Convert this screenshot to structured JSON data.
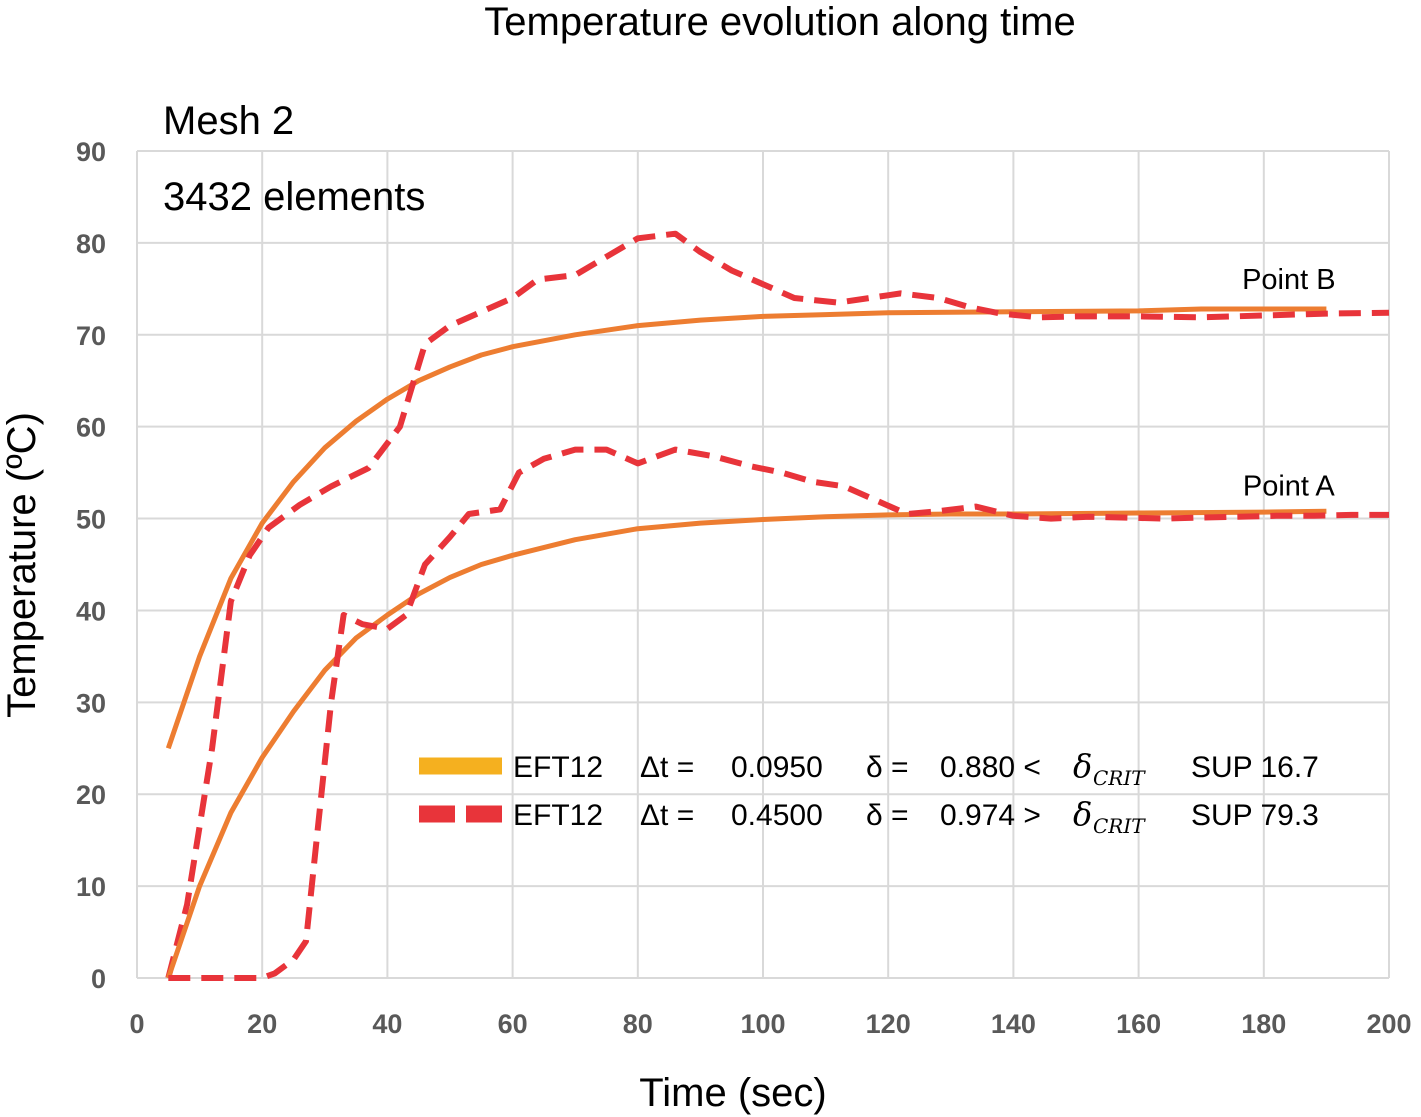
{
  "chart_data": {
    "type": "line",
    "title": "Temperature evolution along time",
    "xlabel": "Time (sec)",
    "ylabel": "Temperature  (ºC)",
    "xlim": [
      0,
      200
    ],
    "ylim": [
      0,
      90
    ],
    "xticks": [
      0,
      20,
      40,
      60,
      80,
      100,
      120,
      140,
      160,
      180,
      200
    ],
    "yticks": [
      0,
      10,
      20,
      30,
      40,
      50,
      60,
      70,
      80,
      90
    ],
    "grid": true,
    "annotations": [
      "Mesh 2",
      "3432 elements"
    ],
    "point_labels": [
      {
        "text": "Point B",
        "x": 184,
        "y": 75
      },
      {
        "text": "Point A",
        "x": 184,
        "y": 52.5
      }
    ],
    "legend": [
      {
        "label": "EFT12",
        "dt_label": "Δt =",
        "dt": "0.0950",
        "delta_label": "δ =",
        "delta": "0.880 <",
        "crit_label": "δ",
        "crit_sub": "CRIT",
        "sup": "SUP 16.7",
        "color": "#ed7d31",
        "swatch_color": "#f5b01f",
        "style": "solid"
      },
      {
        "label": "EFT12",
        "dt_label": "Δt =",
        "dt": "0.4500",
        "delta_label": "δ =",
        "delta": "0.974 >",
        "crit_label": "δ",
        "crit_sub": "CRIT",
        "sup": "SUP 79.3",
        "color": "#e8343a",
        "swatch_color": "#e8343a",
        "style": "dashed"
      }
    ],
    "series": [
      {
        "group": "Point B",
        "style": "solid",
        "color": "#ed7d31",
        "points": [
          [
            5,
            25
          ],
          [
            10,
            35
          ],
          [
            15,
            43.5
          ],
          [
            20,
            49.5
          ],
          [
            25,
            54
          ],
          [
            30,
            57.7
          ],
          [
            35,
            60.6
          ],
          [
            40,
            63
          ],
          [
            45,
            65
          ],
          [
            50,
            66.5
          ],
          [
            55,
            67.8
          ],
          [
            60,
            68.7
          ],
          [
            70,
            70
          ],
          [
            80,
            71
          ],
          [
            90,
            71.6
          ],
          [
            100,
            72
          ],
          [
            110,
            72.2
          ],
          [
            120,
            72.4
          ],
          [
            140,
            72.5
          ],
          [
            160,
            72.6
          ],
          [
            170,
            72.8
          ],
          [
            180,
            72.8
          ],
          [
            190,
            72.8
          ]
        ]
      },
      {
        "group": "Point B",
        "style": "dashed",
        "color": "#e8343a",
        "points": [
          [
            5,
            0
          ],
          [
            8,
            8
          ],
          [
            12,
            25
          ],
          [
            15,
            41
          ],
          [
            18,
            46
          ],
          [
            21,
            49
          ],
          [
            26,
            51.5
          ],
          [
            31,
            53.5
          ],
          [
            37,
            55.5
          ],
          [
            42,
            60
          ],
          [
            46,
            69
          ],
          [
            50,
            71
          ],
          [
            55,
            72.5
          ],
          [
            60,
            74
          ],
          [
            64,
            76
          ],
          [
            70,
            76.5
          ],
          [
            75,
            78.5
          ],
          [
            80,
            80.5
          ],
          [
            86,
            81
          ],
          [
            90,
            79
          ],
          [
            95,
            77
          ],
          [
            100,
            75.5
          ],
          [
            105,
            74
          ],
          [
            112,
            73.5
          ],
          [
            117,
            74
          ],
          [
            122,
            74.5
          ],
          [
            128,
            74
          ],
          [
            133,
            73
          ],
          [
            138,
            72.3
          ],
          [
            144,
            71.9
          ],
          [
            150,
            72
          ],
          [
            160,
            72
          ],
          [
            170,
            71.9
          ],
          [
            180,
            72.1
          ],
          [
            190,
            72.3
          ],
          [
            200,
            72.4
          ]
        ]
      },
      {
        "group": "Point A",
        "style": "solid",
        "color": "#ed7d31",
        "points": [
          [
            5,
            0
          ],
          [
            10,
            10
          ],
          [
            15,
            18
          ],
          [
            20,
            24
          ],
          [
            25,
            29
          ],
          [
            30,
            33.5
          ],
          [
            35,
            37
          ],
          [
            40,
            39.5
          ],
          [
            45,
            41.8
          ],
          [
            50,
            43.6
          ],
          [
            55,
            45
          ],
          [
            60,
            46
          ],
          [
            70,
            47.7
          ],
          [
            80,
            48.9
          ],
          [
            90,
            49.5
          ],
          [
            100,
            49.9
          ],
          [
            110,
            50.2
          ],
          [
            120,
            50.4
          ],
          [
            130,
            50.5
          ],
          [
            140,
            50.5
          ],
          [
            160,
            50.6
          ],
          [
            180,
            50.7
          ],
          [
            190,
            50.8
          ]
        ]
      },
      {
        "group": "Point A",
        "style": "dashed",
        "color": "#e8343a",
        "points": [
          [
            5,
            0
          ],
          [
            7,
            0
          ],
          [
            10,
            0
          ],
          [
            15,
            0
          ],
          [
            20,
            0
          ],
          [
            22,
            0.5
          ],
          [
            25,
            2
          ],
          [
            27,
            4
          ],
          [
            29,
            17
          ],
          [
            31,
            30
          ],
          [
            33,
            39.5
          ],
          [
            36,
            38.5
          ],
          [
            40,
            38
          ],
          [
            43,
            39.5
          ],
          [
            46,
            45
          ],
          [
            50,
            48
          ],
          [
            53,
            50.5
          ],
          [
            58,
            51
          ],
          [
            61,
            55
          ],
          [
            65,
            56.5
          ],
          [
            70,
            57.5
          ],
          [
            75,
            57.5
          ],
          [
            80,
            56
          ],
          [
            86,
            57.5
          ],
          [
            92,
            56.8
          ],
          [
            98,
            55.7
          ],
          [
            103,
            55
          ],
          [
            108,
            54
          ],
          [
            113,
            53.5
          ],
          [
            118,
            52
          ],
          [
            123,
            50.5
          ],
          [
            128,
            50.8
          ],
          [
            134,
            51.3
          ],
          [
            140,
            50.3
          ],
          [
            146,
            50
          ],
          [
            152,
            50.2
          ],
          [
            158,
            50.1
          ],
          [
            164,
            50
          ],
          [
            170,
            50.1
          ],
          [
            176,
            50.2
          ],
          [
            182,
            50.3
          ],
          [
            188,
            50.3
          ],
          [
            194,
            50.4
          ],
          [
            200,
            50.4
          ]
        ]
      }
    ]
  }
}
